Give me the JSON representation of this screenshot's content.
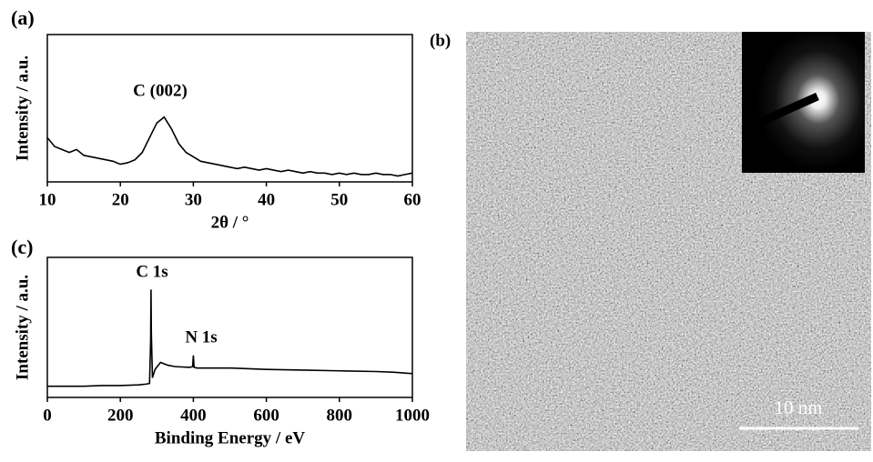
{
  "chart_data": [
    {
      "type": "line",
      "panel_label": "(a)",
      "x_label": "2θ / °",
      "y_label": "Intensity / a.u.",
      "annotations": [
        "C (002)"
      ],
      "color": "#000000",
      "x": [
        10,
        11,
        12,
        13,
        14,
        15,
        16,
        17,
        18,
        19,
        20,
        21,
        22,
        23,
        24,
        25,
        26,
        27,
        28,
        29,
        30,
        31,
        32,
        33,
        34,
        35,
        36,
        37,
        38,
        39,
        40,
        41,
        42,
        43,
        44,
        45,
        46,
        47,
        48,
        49,
        50,
        51,
        52,
        53,
        54,
        55,
        56,
        57,
        58,
        59,
        60
      ],
      "values": [
        30,
        24,
        22,
        20,
        22,
        18,
        17,
        16,
        15,
        14,
        12,
        13,
        15,
        20,
        30,
        40,
        44,
        36,
        26,
        20,
        17,
        14,
        13,
        12,
        11,
        10,
        9,
        10,
        9,
        8,
        9,
        8,
        7,
        8,
        7,
        6,
        7,
        6,
        6,
        5,
        6,
        5,
        6,
        5,
        5,
        6,
        5,
        5,
        4,
        5,
        6
      ],
      "xlim": [
        10,
        60
      ],
      "xticks": [
        10,
        20,
        30,
        40,
        50,
        60
      ],
      "ylim": [
        0,
        100
      ]
    },
    {
      "type": "line",
      "panel_label": "(c)",
      "x_label": "Binding Energy / eV",
      "y_label": "Intensity / a.u.",
      "annotations": [
        "C 1s",
        "N 1s"
      ],
      "color": "#000000",
      "x": [
        0,
        50,
        100,
        150,
        200,
        250,
        270,
        280,
        283,
        284,
        285,
        288,
        295,
        310,
        330,
        350,
        390,
        398,
        400,
        402,
        410,
        450,
        500,
        600,
        700,
        800,
        900,
        950,
        1000
      ],
      "values": [
        8,
        8,
        8,
        8.5,
        8.5,
        9,
        9.5,
        10,
        40,
        77,
        45,
        14,
        20,
        25,
        23,
        22,
        21.5,
        22,
        30,
        21.5,
        21,
        21,
        21,
        20,
        19.5,
        19,
        18.5,
        18,
        17
      ],
      "xlim": [
        0,
        1000
      ],
      "xticks": [
        0,
        200,
        400,
        600,
        800,
        1000
      ],
      "ylim": [
        0,
        100
      ]
    }
  ],
  "image_panel": {
    "label": "(b)",
    "scale_bar": "10 nm"
  }
}
